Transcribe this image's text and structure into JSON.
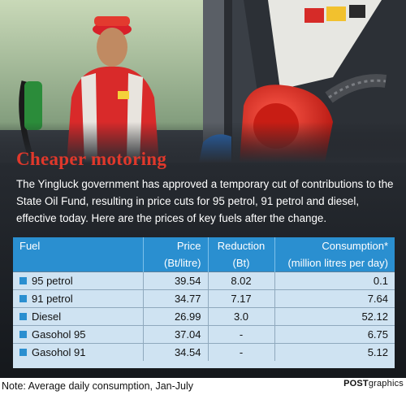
{
  "title": "Cheaper motoring",
  "intro": "The Yingluck government has approved a temporary cut of contributions to the State Oil Fund, resulting in price cuts for 95 petrol, 91 petrol and diesel, effective today. Here are the prices of key fuels after the change.",
  "table": {
    "headers": {
      "fuel": "Fuel",
      "price": "Price",
      "price_unit": "(Bt/litre)",
      "reduction": "Reduction",
      "reduction_unit": "(Bt)",
      "consumption": "Consumption*",
      "consumption_unit": "(million litres per day)"
    },
    "rows": [
      {
        "fuel": "95 petrol",
        "price": "39.54",
        "reduction": "8.02",
        "consumption": "0.1"
      },
      {
        "fuel": "91 petrol",
        "price": "34.77",
        "reduction": "7.17",
        "consumption": "7.64"
      },
      {
        "fuel": "Diesel",
        "price": "26.99",
        "reduction": "3.0",
        "consumption": "52.12"
      },
      {
        "fuel": "Gasohol 95",
        "price": "37.04",
        "reduction": "-",
        "consumption": "6.75"
      },
      {
        "fuel": "Gasohol 91",
        "price": "34.54",
        "reduction": "-",
        "consumption": "5.12"
      }
    ]
  },
  "note": "Note: Average daily consumption, Jan-July",
  "credit_bold": "POST",
  "credit_rest": "graphics",
  "colors": {
    "title_red": "#e0382b",
    "table_header_blue": "#2a8fd0",
    "table_body": "#cfe3f2"
  },
  "chart_data": {
    "type": "table",
    "title": "Cheaper motoring",
    "columns": [
      "Fuel",
      "Price (Bt/litre)",
      "Reduction (Bt)",
      "Consumption* (million litres per day)"
    ],
    "rows": [
      [
        "95 petrol",
        39.54,
        8.02,
        0.1
      ],
      [
        "91 petrol",
        34.77,
        7.17,
        7.64
      ],
      [
        "Diesel",
        26.99,
        3.0,
        52.12
      ],
      [
        "Gasohol 95",
        37.04,
        "-",
        6.75
      ],
      [
        "Gasohol 91",
        34.54,
        "-",
        5.12
      ]
    ]
  }
}
